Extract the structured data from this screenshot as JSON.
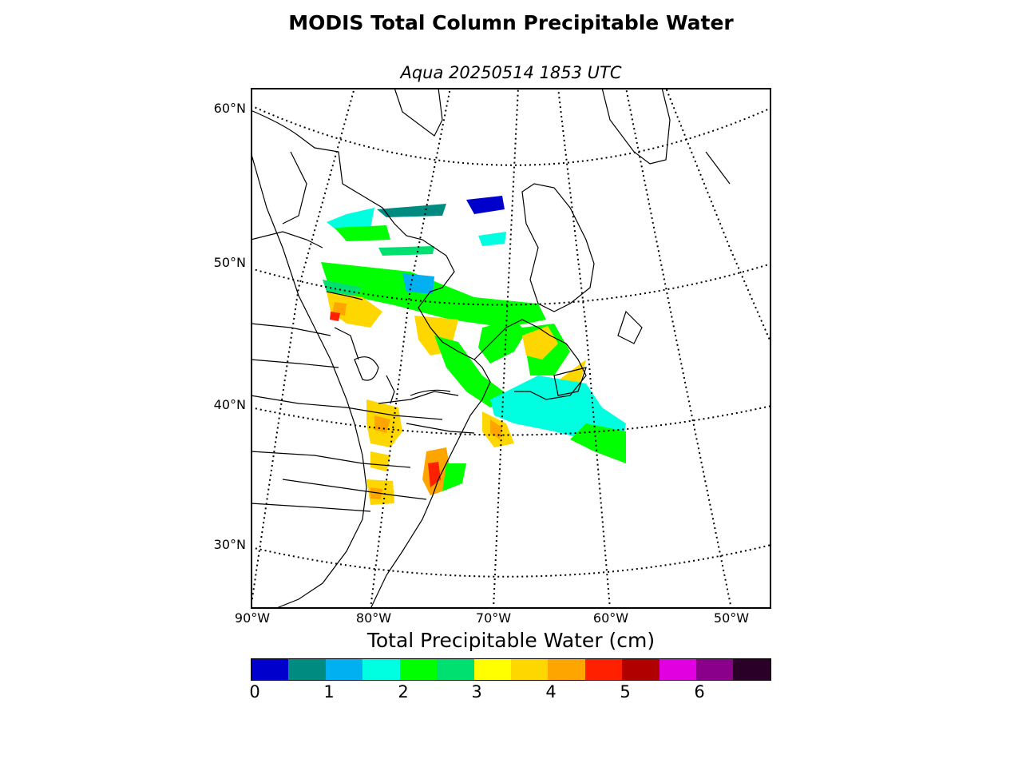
{
  "title": "MODIS Total Column Precipitable Water",
  "subtitle": "Aqua 20250514 1853 UTC",
  "map": {
    "lat_labels": [
      "60°N",
      "50°N",
      "40°N",
      "30°N"
    ],
    "lon_labels": [
      "90°W",
      "80°W",
      "70°W",
      "60°W",
      "50°W"
    ]
  },
  "colorbar": {
    "label": "Total Precipitable Water (cm)",
    "ticks": [
      "0",
      "1",
      "2",
      "3",
      "4",
      "5",
      "6"
    ],
    "colors": [
      "#0000cd",
      "#008b80",
      "#00b0f0",
      "#00ffe0",
      "#00ff00",
      "#00e070",
      "#ffff00",
      "#ffd700",
      "#ffa500",
      "#ff2000",
      "#b00000",
      "#e000e0",
      "#8b008b",
      "#2a0028"
    ]
  }
}
